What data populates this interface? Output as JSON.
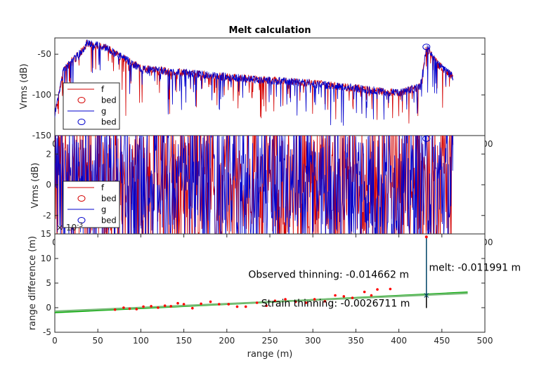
{
  "chart_data": [
    {
      "type": "line",
      "title": "Melt calculation",
      "xlabel": "",
      "ylabel": "Vrms (dB)",
      "xlim": [
        0,
        500
      ],
      "ylim": [
        -150,
        -30
      ],
      "xticks": [
        "0",
        "500"
      ],
      "yticks": [
        "-150",
        "-100",
        "-50"
      ],
      "legend_position": "lower-left",
      "legend": [
        {
          "label": "f",
          "marker": "line",
          "color": "#d40000"
        },
        {
          "label": "bed",
          "marker": "circle",
          "color": "#d40000"
        },
        {
          "label": "g",
          "marker": "line",
          "color": "#0000cc"
        },
        {
          "label": "bed",
          "marker": "circle",
          "color": "#0000cc"
        }
      ],
      "bed_marker": {
        "x": 432,
        "y": -41
      },
      "series": [
        {
          "color": "#d40000",
          "x_range": [
            0,
            463
          ],
          "envelope": [
            [
              0,
              -125
            ],
            [
              10,
              -70
            ],
            [
              30,
              -48
            ],
            [
              38,
              -36
            ],
            [
              60,
              -42
            ],
            [
              100,
              -68
            ],
            [
              200,
              -78
            ],
            [
              300,
              -86
            ],
            [
              400,
              -98
            ],
            [
              425,
              -90
            ],
            [
              432,
              -41
            ],
            [
              445,
              -62
            ],
            [
              463,
              -78
            ]
          ]
        },
        {
          "color": "#0000cc",
          "x_range": [
            0,
            463
          ],
          "envelope": [
            [
              0,
              -125
            ],
            [
              10,
              -70
            ],
            [
              30,
              -48
            ],
            [
              38,
              -36
            ],
            [
              60,
              -42
            ],
            [
              100,
              -68
            ],
            [
              200,
              -78
            ],
            [
              300,
              -86
            ],
            [
              400,
              -98
            ],
            [
              425,
              -90
            ],
            [
              432,
              -41
            ],
            [
              445,
              -62
            ],
            [
              463,
              -78
            ]
          ]
        }
      ]
    },
    {
      "type": "line",
      "xlabel": "",
      "ylabel": "Vrms (dB)",
      "xlim": [
        0,
        500
      ],
      "ylim": [
        -3.2,
        3.2
      ],
      "xticks": [
        "0",
        "500"
      ],
      "yticks": [
        "-2",
        "0",
        "2"
      ],
      "legend_position": "lower-left",
      "legend": [
        {
          "label": "f",
          "marker": "line",
          "color": "#d40000"
        },
        {
          "label": "bed",
          "marker": "circle",
          "color": "#d40000"
        },
        {
          "label": "g",
          "marker": "line",
          "color": "#0000cc"
        },
        {
          "label": "bed",
          "marker": "circle",
          "color": "#0000cc"
        }
      ],
      "bed_marker": {
        "x": 432,
        "y": 3.0
      },
      "series": [
        {
          "color": "#d40000",
          "x_range": [
            0,
            463
          ],
          "amplitude": 3.2
        },
        {
          "color": "#0000cc",
          "x_range": [
            0,
            463
          ],
          "amplitude": 3.2
        }
      ]
    },
    {
      "type": "scatter",
      "xlabel": "range (m)",
      "ylabel": "range difference (m)",
      "exponent_label": "× 10",
      "exponent_power": "-3",
      "xlim": [
        0,
        500
      ],
      "ylim": [
        -5,
        15
      ],
      "xticks": [
        "0",
        "50",
        "100",
        "150",
        "200",
        "250",
        "300",
        "350",
        "400",
        "450",
        "500"
      ],
      "yticks": [
        "-5",
        "0",
        "5",
        "10",
        "15"
      ],
      "points": {
        "color": "#ff0000",
        "x": [
          70,
          80,
          87,
          95,
          103,
          112,
          120,
          128,
          135,
          143,
          150,
          160,
          170,
          181,
          191,
          202,
          212,
          222,
          235,
          246,
          256,
          268,
          280,
          292,
          302,
          314,
          326,
          336,
          346,
          360,
          368,
          375,
          390
        ],
        "y": [
          -0.4,
          0.0,
          -0.2,
          -0.3,
          0.2,
          0.3,
          0.0,
          0.4,
          0.3,
          0.9,
          0.7,
          -0.1,
          0.8,
          1.2,
          0.7,
          0.7,
          0.2,
          0.2,
          1.0,
          0.4,
          1.4,
          1.7,
          1.2,
          1.0,
          1.7,
          1.3,
          2.5,
          2.3,
          2.0,
          3.2,
          2.5,
          3.7,
          3.8
        ]
      },
      "fit_lines": [
        {
          "color": "#00aa00",
          "x": [
            0,
            480
          ],
          "y": [
            -0.95,
            3.1
          ]
        },
        {
          "color": "#77bb77",
          "x": [
            0,
            480
          ],
          "y": [
            -0.75,
            2.95
          ]
        }
      ],
      "vertical_marker": {
        "color": "#004466",
        "x": 432,
        "y_top": 14.4,
        "y_bottom": 2.5
      },
      "annotations": [
        {
          "text": "Observed thinning: -0.014662 m",
          "x": 225,
          "y": 6.1
        },
        {
          "text": "Strain thinning: -0.0026711 m",
          "x": 240,
          "y": 0.2
        },
        {
          "text": "melt: -0.011991 m",
          "x": 435,
          "y": 7.5
        }
      ]
    }
  ]
}
